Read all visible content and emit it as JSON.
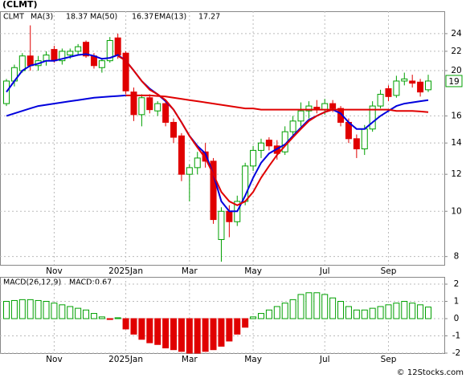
{
  "chart_data": {
    "type": "candlestick",
    "title": "(CLMT)",
    "legend": {
      "symbol": "CLMT",
      "items": [
        {
          "label": "MA(3)",
          "value": 18.37
        },
        {
          "label": "MA(50)",
          "value": 16.37
        },
        {
          "label": "EMA(13)",
          "value": 17.27
        }
      ]
    },
    "last_price": 19,
    "log_scale": true,
    "grid": true,
    "up_color": "#00a000",
    "down_color": "#e00000",
    "categories": [
      null,
      null,
      null,
      null,
      null,
      null,
      "Nov",
      null,
      null,
      null,
      null,
      null,
      null,
      null,
      null,
      "2025Jan",
      null,
      null,
      null,
      null,
      null,
      null,
      null,
      "Mar",
      null,
      null,
      null,
      null,
      null,
      null,
      null,
      "May",
      null,
      null,
      null,
      null,
      null,
      null,
      null,
      null,
      "Jul",
      null,
      null,
      null,
      null,
      null,
      null,
      null,
      "Sep",
      null,
      null,
      null,
      null,
      null
    ],
    "open": [
      17,
      19,
      20,
      21.5,
      20.5,
      21,
      22.2,
      21,
      21.6,
      22,
      23,
      21.5,
      20.3,
      21,
      23.5,
      21.8,
      18,
      16.1,
      17.5,
      16.4,
      17,
      15.5,
      14.5,
      12,
      12.4,
      13.4,
      12.8,
      8.7,
      10,
      9.5,
      10.5,
      12.5,
      13.5,
      14.2,
      13.8,
      13.4,
      14.8,
      15.6,
      16.4,
      16.7,
      16.5,
      17,
      16.6,
      15.5,
      14.3,
      13.6,
      15,
      16.8,
      18.3,
      17.7,
      19,
      19,
      18.9,
      18.2
    ],
    "high": [
      19.2,
      20.6,
      21.8,
      25,
      21.5,
      22,
      22.6,
      22.3,
      22.3,
      22.8,
      23.2,
      21.8,
      21.3,
      23.6,
      24,
      22,
      18.4,
      17.8,
      17.8,
      17.2,
      17.3,
      15.8,
      14.7,
      12.6,
      13.4,
      14,
      13,
      10.2,
      10.3,
      10.8,
      12.7,
      13.8,
      14.3,
      14.4,
      14.2,
      15.2,
      16,
      17.1,
      17.2,
      17.3,
      17.4,
      17.3,
      16.8,
      15.8,
      14.6,
      15.3,
      17.2,
      18.2,
      18.6,
      19.5,
      19.8,
      19.6,
      19.2,
      19.6
    ],
    "low": [
      16.8,
      18.5,
      19.8,
      20,
      20,
      20.5,
      20.8,
      20.6,
      21.2,
      21.6,
      21.3,
      20.2,
      19.8,
      20.8,
      21.2,
      17.8,
      15.6,
      15.2,
      16.2,
      16,
      15.2,
      14,
      11.6,
      10.5,
      12,
      12.4,
      9.4,
      7.8,
      8.8,
      9.3,
      10.3,
      12.2,
      13,
      13.5,
      12.9,
      13.2,
      14.5,
      15.2,
      15.8,
      16.2,
      16.1,
      16.3,
      15.2,
      14,
      13,
      13.2,
      14.8,
      16.6,
      17.2,
      17.5,
      18.6,
      18.4,
      17.6,
      18
    ],
    "close": [
      19,
      20.3,
      21.5,
      20.5,
      21,
      21.6,
      21,
      22,
      22,
      22.5,
      21.5,
      20.5,
      21,
      23.2,
      21.6,
      18.1,
      16.1,
      17.5,
      16.5,
      17,
      15.5,
      14.4,
      12,
      12.4,
      13,
      12.8,
      9.6,
      10,
      9.5,
      10.5,
      12.5,
      13.5,
      14,
      13.8,
      13.3,
      14.8,
      15.6,
      16.4,
      16.8,
      16.5,
      17,
      16.6,
      15.5,
      14.3,
      13.6,
      15,
      16.8,
      17.8,
      17.6,
      19,
      19.2,
      18.8,
      18,
      19
    ],
    "lines": [
      {
        "color": "#0000dd",
        "values": [
          18,
          19,
          20,
          20.5,
          20.7,
          21,
          21,
          21.2,
          21.4,
          21.6,
          21.7,
          21.5,
          21.2,
          21.3,
          21.6,
          21,
          20,
          19,
          18.3,
          17.8,
          17.2,
          16.5,
          15.5,
          14.5,
          13.8,
          13.3,
          12,
          10.5,
          10,
          10,
          10.8,
          11.8,
          12.7,
          13.3,
          13.6,
          13.9,
          14.5,
          15.1,
          15.7,
          16,
          16.3,
          16.5,
          16.2,
          15.5,
          15,
          15,
          15.5,
          16,
          16.4,
          16.8,
          17,
          17.1,
          17.2,
          17.3
        ]
      },
      {
        "color": "#0000dd",
        "values": [
          16,
          16.2,
          16.4,
          16.6,
          16.8,
          16.9,
          17.0,
          17.1,
          17.2,
          17.3,
          17.4,
          17.5,
          17.55,
          17.6,
          17.65,
          17.7,
          null,
          null,
          null,
          null,
          null,
          null,
          null,
          null,
          null,
          null,
          null,
          null,
          null,
          null,
          null,
          null,
          null,
          null,
          null,
          null,
          null,
          null,
          null,
          null,
          null,
          null,
          null,
          null,
          null,
          null,
          null,
          null,
          null,
          null,
          null,
          null,
          null,
          null
        ]
      },
      {
        "color": "#e00000",
        "values": [
          null,
          null,
          null,
          null,
          null,
          null,
          null,
          null,
          null,
          null,
          null,
          null,
          null,
          null,
          null,
          17.7,
          17.7,
          17.7,
          17.7,
          17.65,
          17.6,
          17.5,
          17.4,
          17.3,
          17.2,
          17.1,
          17.0,
          16.9,
          16.8,
          16.7,
          16.6,
          16.6,
          16.5,
          16.5,
          16.5,
          16.5,
          16.5,
          16.5,
          16.5,
          16.5,
          16.5,
          16.5,
          16.5,
          16.5,
          16.5,
          16.5,
          16.5,
          16.5,
          16.5,
          16.4,
          16.4,
          16.4,
          16.35,
          16.3
        ]
      },
      {
        "color": "#e00000",
        "values": [
          null,
          null,
          null,
          null,
          null,
          null,
          null,
          null,
          null,
          null,
          null,
          null,
          null,
          null,
          21.5,
          21,
          20,
          19,
          18.2,
          17.8,
          17.3,
          16.5,
          15.5,
          14.5,
          13.7,
          13,
          12,
          11,
          10.5,
          10.3,
          10.5,
          11,
          11.8,
          12.5,
          13.2,
          13.8,
          14.4,
          15,
          15.6,
          16,
          16.3,
          16.5,
          null,
          null,
          null,
          null,
          null,
          null,
          null,
          null,
          null,
          null,
          null,
          null
        ]
      }
    ],
    "ylim": [
      7.68,
      26.8
    ],
    "yticks": [
      8,
      10,
      12,
      14,
      16,
      20,
      22,
      24
    ],
    "macd": {
      "title": "MACD(26,12,9)",
      "value_label": "MACD:",
      "value": 0.67,
      "values": [
        1.0,
        1.05,
        1.1,
        1.1,
        1.05,
        1.0,
        0.9,
        0.8,
        0.7,
        0.6,
        0.5,
        0.3,
        0.1,
        -0.05,
        0.05,
        -0.6,
        -0.9,
        -1.2,
        -1.4,
        -1.5,
        -1.7,
        -1.8,
        -1.9,
        -2.0,
        -2.0,
        -1.9,
        -1.8,
        -1.6,
        -1.3,
        -0.9,
        -0.5,
        0.1,
        0.3,
        0.5,
        0.7,
        0.9,
        1.1,
        1.4,
        1.5,
        1.5,
        1.4,
        1.2,
        1.0,
        0.7,
        0.5,
        0.5,
        0.6,
        0.7,
        0.8,
        0.9,
        1.0,
        0.9,
        0.8,
        0.67
      ],
      "ylim": [
        -2.0,
        2.42
      ],
      "yticks": [
        2,
        1,
        0,
        -1,
        -2
      ]
    },
    "watermark": "© 12Stocks.com"
  }
}
